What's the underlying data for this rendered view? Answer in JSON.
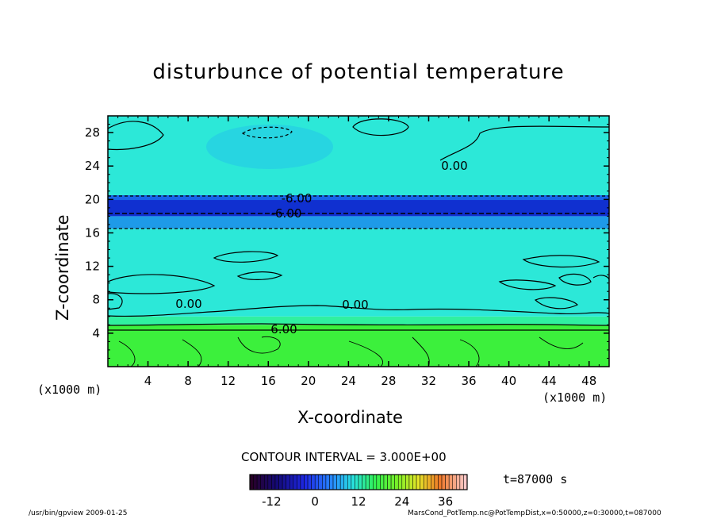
{
  "chart_data": {
    "type": "heatmap",
    "title": "disturbunce of potential temperature",
    "xlabel": "X-coordinate",
    "ylabel": "Z-coordinate",
    "x_unit": "(x1000 m)",
    "xlim": [
      0,
      50
    ],
    "ylim": [
      0,
      30
    ],
    "x_ticks": [
      4,
      8,
      12,
      16,
      20,
      24,
      28,
      32,
      36,
      40,
      44,
      48
    ],
    "y_ticks": [
      4,
      8,
      12,
      16,
      20,
      24,
      28
    ],
    "contour_interval_text": "CONTOUR INTERVAL = 3.000E+00",
    "time_text": "t=87000 s",
    "contour_labels": [
      "0.00",
      "-6.00",
      "-6.00",
      "0.00",
      "0.00",
      "6.00"
    ],
    "layers": [
      {
        "z": [
          0,
          5
        ],
        "value": 6
      },
      {
        "z": [
          5,
          6
        ],
        "value": 3
      },
      {
        "z": [
          6,
          16.5
        ],
        "value": 0
      },
      {
        "z": [
          16.5,
          18
        ],
        "value": -3
      },
      {
        "z": [
          18,
          20.5
        ],
        "value": -8
      },
      {
        "z": [
          20.5,
          30
        ],
        "value": 0
      }
    ],
    "colorbar": {
      "range": [
        -18,
        42
      ],
      "tick_labels": [
        "-12",
        "0",
        "12",
        "24",
        "36"
      ],
      "tick_values": [
        -12,
        0,
        12,
        24,
        36
      ]
    },
    "grid": false
  },
  "footer": {
    "left": "/usr/bin/gpview   2009-01-25",
    "right": "MarsCond_PotTemp.nc@PotTempDist,x=0:50000,z=0:30000,t=087000"
  }
}
